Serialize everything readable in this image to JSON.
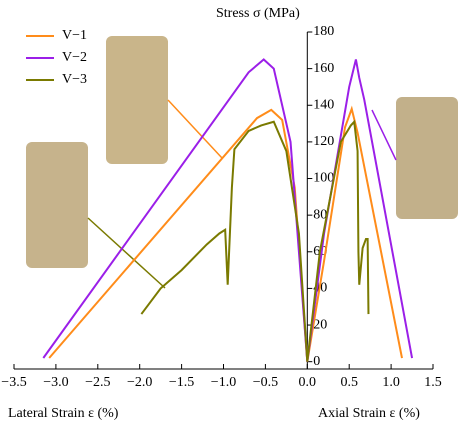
{
  "chart_data": {
    "type": "line",
    "xlabel_left": "Lateral Strain ε (%)",
    "xlabel_right": "Axial Strain ε (%)",
    "ylabel": "Stress σ (MPa)",
    "xlim": [
      -3.5,
      1.5
    ],
    "ylim": [
      -4,
      180
    ],
    "xticks": [
      {
        "value": -3.5,
        "label": "−3.5"
      },
      {
        "value": -3.0,
        "label": "−3.0"
      },
      {
        "value": -2.5,
        "label": "−2.5"
      },
      {
        "value": -2.0,
        "label": "−2.0"
      },
      {
        "value": -1.5,
        "label": "−1.5"
      },
      {
        "value": -1.0,
        "label": "−1.0"
      },
      {
        "value": -0.5,
        "label": "−0.5"
      },
      {
        "value": 0,
        "label": "0.0"
      },
      {
        "value": 0.5,
        "label": "0.5"
      },
      {
        "value": 1.0,
        "label": "1.0"
      },
      {
        "value": 1.5,
        "label": "1.5"
      }
    ],
    "yticks": [
      0,
      20,
      40,
      60,
      80,
      100,
      120,
      140,
      160,
      180
    ],
    "legend": "upper left",
    "series": [
      {
        "name": "V−1",
        "color": "#ff8c1a",
        "x": [
          -3.08,
          -0.6,
          -0.43,
          -0.3,
          -0.15,
          0,
          0.2,
          0.45,
          0.53,
          0.6,
          1.13
        ],
        "y": [
          2,
          133,
          137.5,
          132,
          95,
          0,
          55,
          128,
          138,
          125,
          2
        ]
      },
      {
        "name": "V−2",
        "color": "#9b1fe8",
        "x": [
          -3.15,
          -0.7,
          -0.52,
          -0.4,
          -0.2,
          0,
          0.2,
          0.5,
          0.58,
          0.62,
          0.68,
          1.25
        ],
        "y": [
          2,
          158,
          165,
          160,
          120,
          0,
          70,
          150,
          165,
          155,
          143,
          2
        ]
      },
      {
        "name": "V−3",
        "color": "#7a7a00",
        "x": [
          -1.98,
          -1.75,
          -1.5,
          -1.2,
          -1.05,
          -0.98,
          -0.95,
          -0.9,
          -0.87,
          -0.7,
          -0.55,
          -0.4,
          -0.25,
          -0.1,
          0,
          0.15,
          0.4,
          0.52,
          0.56,
          0.6,
          0.61,
          0.62,
          0.66,
          0.7,
          0.72,
          0.73
        ],
        "y": [
          26,
          40,
          50,
          64,
          70,
          72,
          42,
          95,
          116,
          126,
          129,
          131,
          115,
          70,
          0,
          60,
          120,
          129,
          131,
          115,
          60,
          42,
          62,
          67,
          67,
          26
        ]
      }
    ]
  }
}
